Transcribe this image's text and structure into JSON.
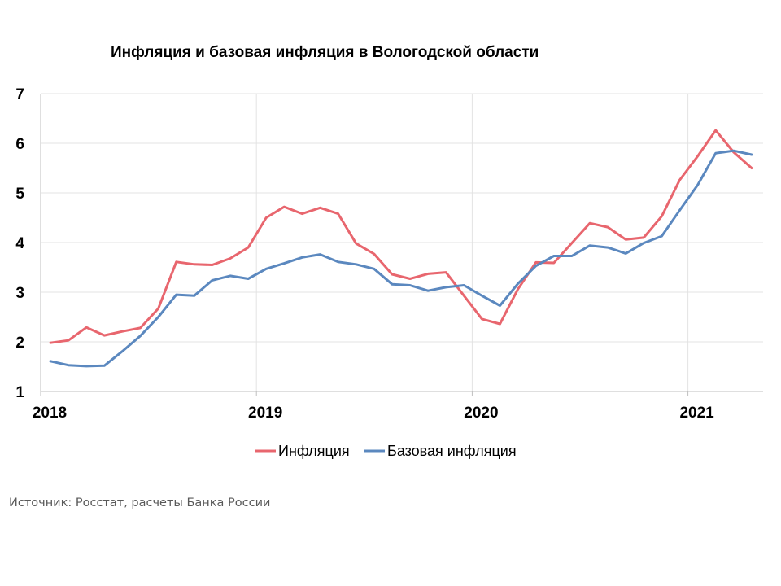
{
  "chart_data": {
    "type": "line",
    "title": "Инфляция и базовая инфляция в Вологодской области",
    "x_start": "2018-01",
    "x_tick_labels": [
      "2018",
      "2019",
      "2020",
      "2021"
    ],
    "x_tick_dates": [
      "2018-01",
      "2019-01",
      "2020-01",
      "2021-01"
    ],
    "ylim": [
      1,
      7
    ],
    "y_tick_labels": [
      "1",
      "2",
      "3",
      "4",
      "5",
      "6",
      "7"
    ],
    "grid": true,
    "legend_position": "bottom",
    "series": [
      {
        "name": "Инфляция",
        "color": "#e8666e",
        "values": [
          1.98,
          2.03,
          2.29,
          2.13,
          2.21,
          2.28,
          2.67,
          3.61,
          3.56,
          3.55,
          3.68,
          3.9,
          4.5,
          4.72,
          4.58,
          4.7,
          4.58,
          3.98,
          3.77,
          3.36,
          3.27,
          3.37,
          3.4,
          2.93,
          2.46,
          2.36,
          3.06,
          3.6,
          3.59,
          3.99,
          4.39,
          4.31,
          4.06,
          4.1,
          4.53,
          5.26,
          5.74,
          6.26,
          5.82,
          5.5
        ]
      },
      {
        "name": "Базовая инфляция",
        "color": "#5b88bf",
        "values": [
          1.61,
          1.53,
          1.51,
          1.52,
          1.81,
          2.12,
          2.5,
          2.95,
          2.93,
          3.24,
          3.33,
          3.27,
          3.47,
          3.58,
          3.7,
          3.76,
          3.61,
          3.56,
          3.47,
          3.16,
          3.14,
          3.03,
          3.1,
          3.14,
          2.93,
          2.73,
          3.17,
          3.53,
          3.73,
          3.73,
          3.94,
          3.9,
          3.78,
          3.99,
          4.13,
          4.65,
          5.16,
          5.8,
          5.85,
          5.77
        ]
      }
    ],
    "source": "Источник: Росстат, расчеты Банка России"
  }
}
